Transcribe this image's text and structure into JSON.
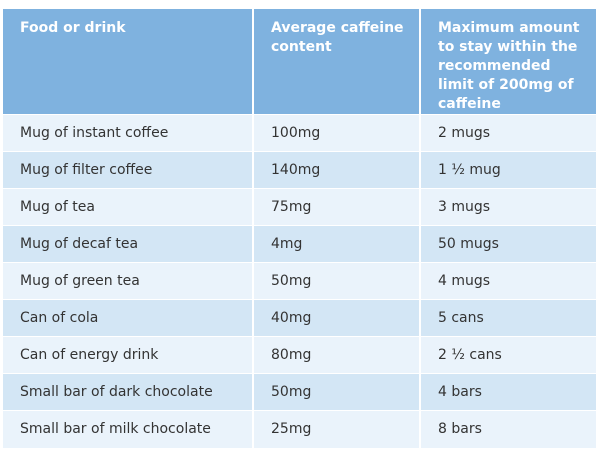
{
  "table": {
    "headers": [
      "Food or drink",
      "Average caffeine content",
      "Maximum amount to stay within the recommended limit of 200mg of caffeine"
    ],
    "rows": [
      [
        "Mug of instant coffee",
        "100mg",
        "2 mugs"
      ],
      [
        "Mug of filter coffee",
        "140mg",
        "1 ½ mug"
      ],
      [
        "Mug of tea",
        "75mg",
        "3 mugs"
      ],
      [
        "Mug of decaf tea",
        "4mg",
        "50 mugs"
      ],
      [
        "Mug of green tea",
        "50mg",
        "4 mugs"
      ],
      [
        "Can of cola",
        "40mg",
        "5 cans"
      ],
      [
        "Can of energy drink",
        "80mg",
        "2 ½ cans"
      ],
      [
        "Small bar of dark chocolate",
        "50mg",
        "4 bars"
      ],
      [
        "Small bar of milk chocolate",
        "25mg",
        "8 bars"
      ]
    ]
  },
  "colors": {
    "header_bg": "#7fb2df",
    "row_light": "#eaf3fb",
    "row_dark": "#d3e6f5"
  }
}
